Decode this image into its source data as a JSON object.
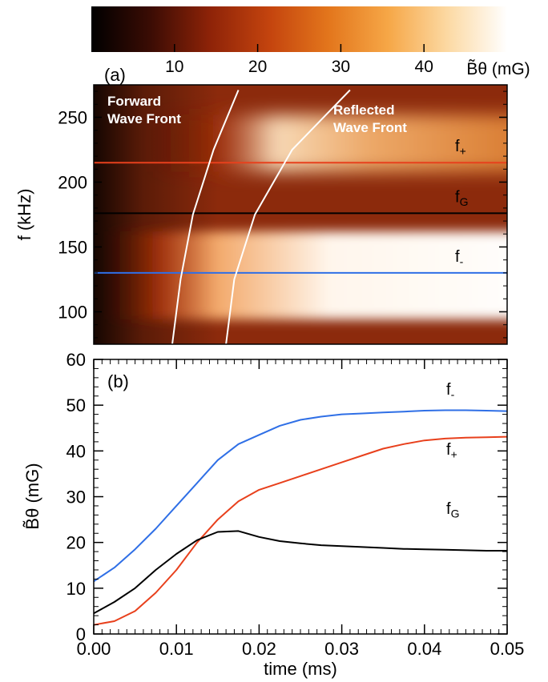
{
  "chart_data": [
    {
      "type": "heatmap",
      "panel_label": "(a)",
      "ylabel": "f (kHz)",
      "x_range": [
        0.0,
        0.05
      ],
      "ylim": [
        75,
        275
      ],
      "yticks": [
        100,
        150,
        200,
        250
      ],
      "colorbar": {
        "label": "B̃θ (mG)",
        "range": [
          0,
          50
        ],
        "ticks": [
          10,
          20,
          30,
          40
        ],
        "colors": [
          "#000000",
          "#3b0c04",
          "#8e2308",
          "#c4440e",
          "#e3761c",
          "#f6a747",
          "#fcd9a3",
          "#ffffff"
        ]
      },
      "horizontal_lines": [
        {
          "name": "f+",
          "label_main": "f",
          "label_sub": "+",
          "value": 215,
          "color": "#e8401c"
        },
        {
          "name": "fG",
          "label_main": "f",
          "label_sub": "G",
          "value": 176,
          "color": "#000000"
        },
        {
          "name": "f-",
          "label_main": "f",
          "label_sub": "-",
          "value": 130,
          "color": "#2f6fe6"
        }
      ],
      "wave_fronts": [
        {
          "label_line1": "Forward",
          "label_line2": "Wave Front",
          "points": [
            [
              0.0095,
              75
            ],
            [
              0.0105,
              125
            ],
            [
              0.012,
              175
            ],
            [
              0.0145,
              225
            ],
            [
              0.0175,
              271
            ]
          ]
        },
        {
          "label_line1": "Reflected",
          "label_line2": "Wave Front",
          "points": [
            [
              0.016,
              75
            ],
            [
              0.017,
              125
            ],
            [
              0.0195,
              175
            ],
            [
              0.024,
              225
            ],
            [
              0.031,
              271
            ]
          ]
        }
      ],
      "intensity_bands": [
        {
          "center": 230,
          "width": 11,
          "amplitude": 42,
          "onset": 0.012
        },
        {
          "center": 128,
          "width": 17,
          "amplitude": 50,
          "onset": 0.007
        }
      ]
    },
    {
      "type": "line",
      "panel_label": "(b)",
      "xlabel": "time (ms)",
      "ylabel": "B̃θ (mG)",
      "xlim": [
        0.0,
        0.05
      ],
      "ylim": [
        0,
        60
      ],
      "xticks": [
        "0.00",
        "0.01",
        "0.02",
        "0.03",
        "0.04",
        "0.05"
      ],
      "yticks": [
        "0",
        "10",
        "20",
        "30",
        "40",
        "50",
        "60"
      ],
      "x": [
        0.0,
        0.0025,
        0.005,
        0.0075,
        0.01,
        0.0125,
        0.015,
        0.0175,
        0.02,
        0.0225,
        0.025,
        0.0275,
        0.03,
        0.0325,
        0.035,
        0.0375,
        0.04,
        0.0425,
        0.045,
        0.0475,
        0.05
      ],
      "series": [
        {
          "name": "f-",
          "label_main": "f",
          "label_sub": "-",
          "color": "#2f6fe6",
          "values": [
            11.5,
            14.5,
            18.5,
            23,
            28,
            33,
            38,
            41.5,
            43.5,
            45.5,
            46.8,
            47.5,
            48,
            48.2,
            48.4,
            48.6,
            48.8,
            48.9,
            48.9,
            48.8,
            48.7
          ]
        },
        {
          "name": "f+",
          "label_main": "f",
          "label_sub": "+",
          "color": "#e8401c",
          "values": [
            2,
            2.8,
            5,
            9,
            14,
            20,
            25,
            29,
            31.5,
            33,
            34.5,
            36,
            37.5,
            39,
            40.5,
            41.5,
            42.3,
            42.7,
            42.9,
            43,
            43.1
          ]
        },
        {
          "name": "fG",
          "label_main": "f",
          "label_sub": "G",
          "color": "#000000",
          "values": [
            4.5,
            7,
            10,
            14,
            17.5,
            20.5,
            22.3,
            22.5,
            21.2,
            20.3,
            19.8,
            19.4,
            19.2,
            19,
            18.8,
            18.6,
            18.5,
            18.4,
            18.3,
            18.2,
            18.2
          ]
        }
      ]
    }
  ]
}
